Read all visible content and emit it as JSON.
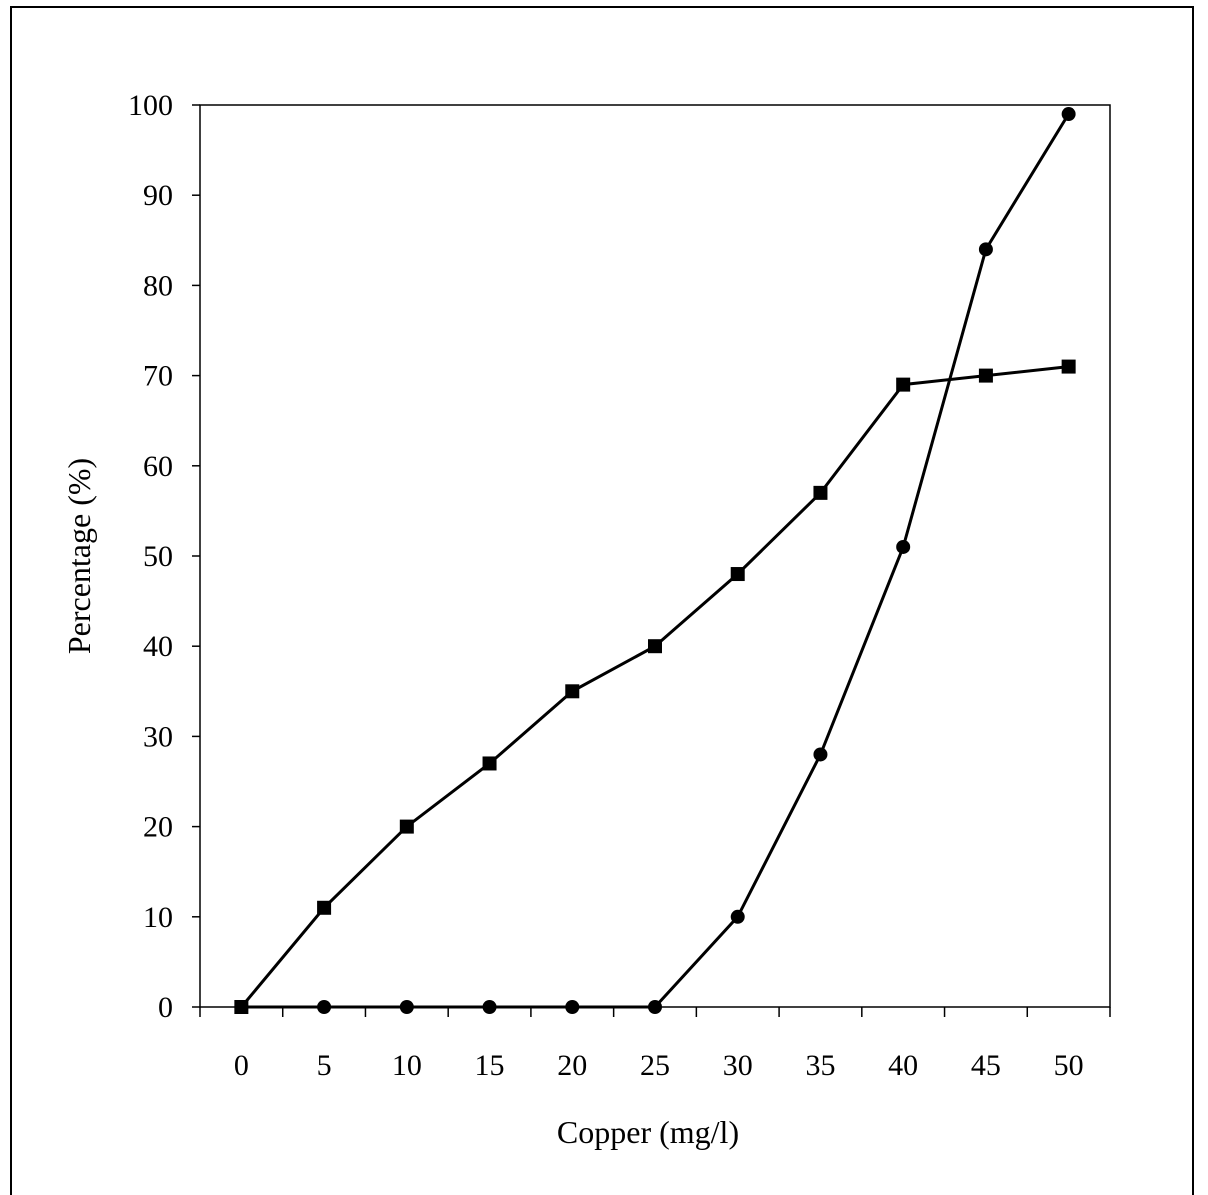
{
  "chart_data": {
    "type": "line",
    "title": "",
    "xlabel": "Copper (mg/l)",
    "ylabel": "Percentage (%)",
    "categories": [
      "0",
      "5",
      "10",
      "15",
      "20",
      "25",
      "30",
      "35",
      "40",
      "45",
      "50"
    ],
    "yticks": [
      "0",
      "10",
      "20",
      "30",
      "40",
      "50",
      "60",
      "70",
      "80",
      "90",
      "100"
    ],
    "ylim": [
      0,
      100
    ],
    "grid": false,
    "legend": "none",
    "series": [
      {
        "marker": "square",
        "color": "#000000",
        "values": [
          0,
          11,
          20,
          27,
          35,
          40,
          48,
          57,
          69,
          70,
          71
        ]
      },
      {
        "marker": "circle",
        "color": "#000000",
        "values": [
          0,
          0,
          0,
          0,
          0,
          0,
          10,
          28,
          51,
          84,
          99
        ]
      }
    ]
  }
}
